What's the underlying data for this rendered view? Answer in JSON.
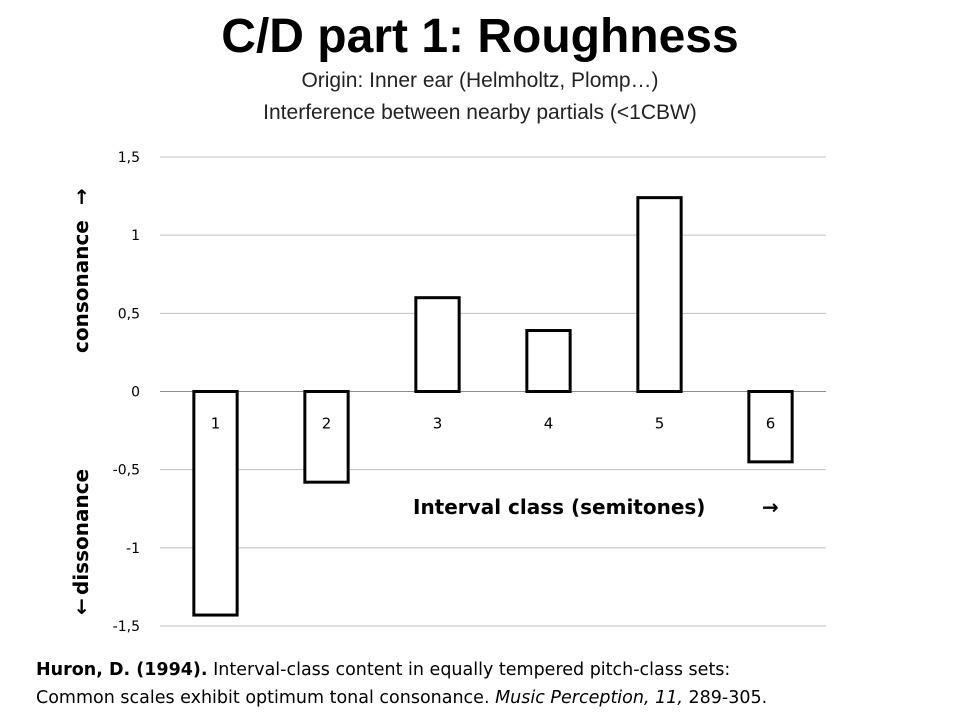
{
  "slide": {
    "title": "C/D part 1: Roughness",
    "subtitle_line1": "Origin: Inner ear (Helmholtz, Plomp…)",
    "subtitle_line2": "Interference between nearby partials (<1CBW)"
  },
  "chart_data": {
    "type": "bar",
    "categories": [
      "1",
      "2",
      "3",
      "4",
      "5",
      "6"
    ],
    "values": [
      -1.43,
      -0.58,
      0.6,
      0.39,
      1.24,
      -0.45
    ],
    "ylim": [
      -1.5,
      1.5
    ],
    "yticks": [
      "1,5",
      "1",
      "0,5",
      "0",
      "-0,5",
      "-1",
      "-1,5"
    ],
    "ytick_values": [
      1.5,
      1,
      0.5,
      0,
      -0.5,
      -1,
      -1.5
    ],
    "ylabel_upper": "consonance",
    "ylabel_lower": "dissonance",
    "xlabel": "Interval class (semitones)",
    "grid": true,
    "bar_fill": "#ffffff",
    "bar_stroke": "#000000",
    "grid_color": "#bfbfbf"
  },
  "citation": {
    "author": "Huron, D. (1994).",
    "text1": " Interval-class content in equally tempered pitch-class sets:",
    "text2": "Common scales exhibit optimum tonal consonance. ",
    "journal": "Music Perception, 11,",
    "pages": " 289-305."
  }
}
